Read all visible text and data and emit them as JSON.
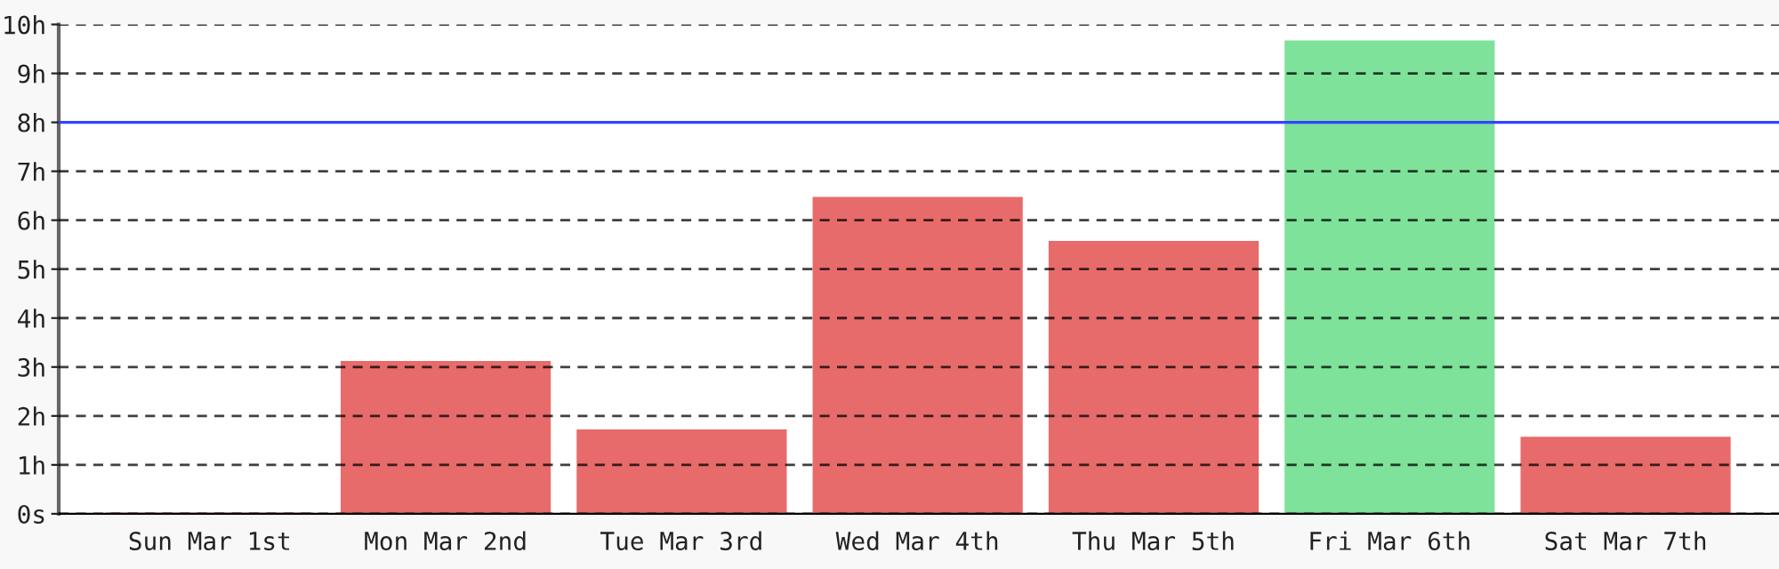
{
  "chart_data": {
    "type": "bar",
    "categories": [
      "Sun Mar 1st",
      "Mon Mar 2nd",
      "Tue Mar 3rd",
      "Wed Mar 4th",
      "Thu Mar 5th",
      "Fri Mar 6th",
      "Sat Mar 7th"
    ],
    "values": [
      0,
      3.1,
      1.7,
      6.45,
      5.55,
      9.65,
      1.55
    ],
    "colors": [
      "#e86b6b",
      "#e86b6b",
      "#e86b6b",
      "#e86b6b",
      "#e86b6b",
      "#7ee29a",
      "#e86b6b"
    ],
    "ylim": [
      0,
      10
    ],
    "yticks": [
      {
        "value": 0,
        "label": "0s"
      },
      {
        "value": 1,
        "label": "1h"
      },
      {
        "value": 2,
        "label": "2h"
      },
      {
        "value": 3,
        "label": "3h"
      },
      {
        "value": 4,
        "label": "4h"
      },
      {
        "value": 5,
        "label": "5h"
      },
      {
        "value": 6,
        "label": "6h"
      },
      {
        "value": 7,
        "label": "7h"
      },
      {
        "value": 8,
        "label": "8h"
      },
      {
        "value": 9,
        "label": "9h"
      },
      {
        "value": 10,
        "label": "10h"
      }
    ],
    "grid": "y",
    "ref_lines": [
      {
        "axis": "y",
        "value": 8,
        "color": "#3344ff",
        "line_style": "solid"
      }
    ]
  }
}
